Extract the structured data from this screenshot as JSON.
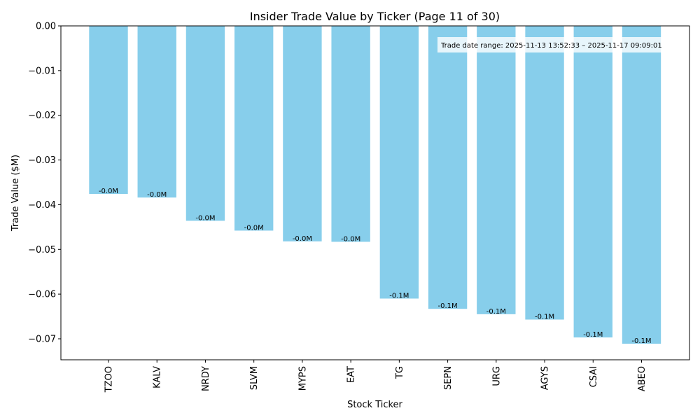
{
  "chart_data": {
    "type": "bar",
    "title": "Insider Trade Value by Ticker (Page 11 of 30)",
    "xlabel": "Stock Ticker",
    "ylabel": "Trade Value ($M)",
    "ylim": [
      -0.0747,
      0.0
    ],
    "yticks": [
      0.0,
      -0.01,
      -0.02,
      -0.03,
      -0.04,
      -0.05,
      -0.06,
      -0.07
    ],
    "ytick_labels": [
      "0.00",
      "−0.01",
      "−0.02",
      "−0.03",
      "−0.04",
      "−0.05",
      "−0.06",
      "−0.07"
    ],
    "categories": [
      "TZOO",
      "KALV",
      "NRDY",
      "SLVM",
      "MYPS",
      "EAT",
      "TG",
      "SEPN",
      "URG",
      "AGYS",
      "CSAI",
      "ABEO"
    ],
    "values": [
      -0.0376,
      -0.0384,
      -0.0436,
      -0.0458,
      -0.0482,
      -0.0483,
      -0.061,
      -0.0633,
      -0.0645,
      -0.0657,
      -0.0697,
      -0.0711
    ],
    "data_labels": [
      "-0.0M",
      "-0.0M",
      "-0.0M",
      "-0.0M",
      "-0.0M",
      "-0.0M",
      "-0.1M",
      "-0.1M",
      "-0.1M",
      "-0.1M",
      "-0.1M",
      "-0.1M"
    ],
    "bar_color": "#87CEEB",
    "grid": false,
    "annotation": "Trade date range: 2025-11-13 13:52:33 – 2025-11-17 09:09:01"
  }
}
